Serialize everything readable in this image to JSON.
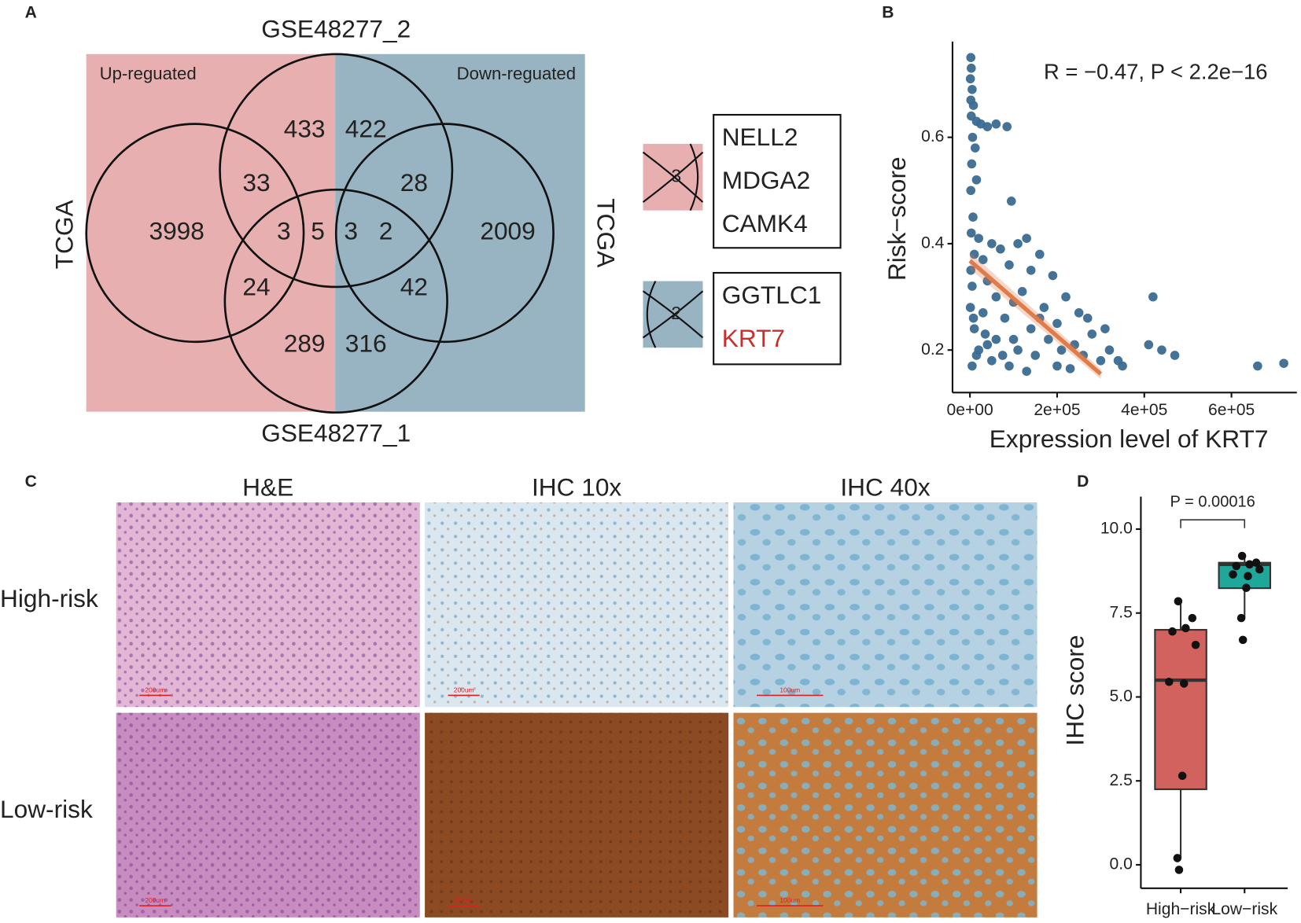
{
  "venn": {
    "panel": "A",
    "up_label": "Up-reguated",
    "down_label": "Down-reguated",
    "sets": [
      "TCGA",
      "GSE48277_2",
      "GSE48277_1",
      "TCGA"
    ],
    "regions": [
      3998,
      433,
      33,
      3,
      5,
      24,
      289,
      422,
      28,
      3,
      2,
      2009,
      42,
      316
    ],
    "insets": [
      {
        "count": 3,
        "genes": [
          {
            "name": "NELL2",
            "color": "#222222"
          },
          {
            "name": "MDGA2",
            "color": "#222222"
          },
          {
            "name": "CAMK4",
            "color": "#222222"
          }
        ]
      },
      {
        "count": 2,
        "genes": [
          {
            "name": "GGTLC1",
            "color": "#222222"
          },
          {
            "name": "KRT7",
            "color": "#c8302f"
          }
        ]
      }
    ],
    "colors": [
      "#e8afb0",
      "#98b3c1"
    ]
  },
  "chart_data": [
    {
      "type": "scatter",
      "panel": "B",
      "annotation": "R = −0.47, P < 2.2e−16",
      "x_label": "Expression level of KRT7",
      "y_label": "Risk−score",
      "color": "#3b6a91",
      "x": [
        2000,
        3000,
        1000,
        5000,
        2000,
        8000,
        3000,
        15000,
        25000,
        40000,
        60000,
        85000,
        6000,
        12000,
        4000,
        15000,
        2000,
        95000,
        7000,
        3000,
        20000,
        50000,
        110000,
        130000,
        70000,
        10000,
        30000,
        160000,
        90000,
        140000,
        190000,
        40000,
        5000,
        120000,
        220000,
        60000,
        100000,
        170000,
        250000,
        30000,
        80000,
        200000,
        140000,
        10000,
        280000,
        60000,
        180000,
        240000,
        320000,
        110000,
        20000,
        150000,
        260000,
        300000,
        340000,
        50000,
        200000,
        90000,
        130000,
        230000,
        5000,
        15000,
        40000,
        75000,
        350000,
        420000,
        410000,
        440000,
        470000,
        660000,
        720000,
        270000,
        310000,
        100000,
        160000,
        210000,
        35000,
        1000,
        2000,
        8000
      ],
      "values": [
        0.75,
        0.73,
        0.71,
        0.69,
        0.67,
        0.66,
        0.64,
        0.63,
        0.625,
        0.62,
        0.625,
        0.62,
        0.6,
        0.58,
        0.55,
        0.52,
        0.5,
        0.48,
        0.45,
        0.42,
        0.41,
        0.4,
        0.4,
        0.41,
        0.39,
        0.38,
        0.37,
        0.38,
        0.36,
        0.35,
        0.34,
        0.33,
        0.32,
        0.31,
        0.3,
        0.3,
        0.29,
        0.28,
        0.27,
        0.27,
        0.26,
        0.25,
        0.24,
        0.24,
        0.23,
        0.22,
        0.22,
        0.21,
        0.2,
        0.2,
        0.2,
        0.19,
        0.19,
        0.18,
        0.18,
        0.18,
        0.17,
        0.17,
        0.16,
        0.165,
        0.17,
        0.19,
        0.21,
        0.19,
        0.17,
        0.3,
        0.21,
        0.2,
        0.19,
        0.17,
        0.175,
        0.26,
        0.24,
        0.22,
        0.26,
        0.2,
        0.23,
        0.28,
        0.35,
        0.26
      ],
      "fit": {
        "x": [
          0,
          300000
        ],
        "values": [
          0.368,
          0.155
        ],
        "color": "#e07b4a"
      },
      "xlim": [
        -40000,
        750000
      ],
      "ylim": [
        0.12,
        0.78
      ],
      "xticks": [
        {
          "value": 0,
          "label": "0e+00"
        },
        {
          "value": 200000,
          "label": "2e+05"
        },
        {
          "value": 400000,
          "label": "4e+05"
        },
        {
          "value": 600000,
          "label": "6e+05"
        }
      ],
      "yticks": [
        0.2,
        0.4,
        0.6
      ]
    },
    {
      "type": "box",
      "panel": "D",
      "annotation": "P = 0.00016",
      "y_label": "IHC score",
      "categories": [
        "High−risk",
        "Low−risk"
      ],
      "boxes": [
        {
          "color": "#d2625e",
          "whisker_low": 0.2,
          "q1": 2.25,
          "median": 5.5,
          "q3": 7.0,
          "whisker_high": 7.9,
          "points": [
            7.85,
            7.35,
            7.05,
            6.95,
            6.55,
            5.45,
            5.4,
            2.65,
            0.2,
            -0.15
          ]
        },
        {
          "color": "#1fa89a",
          "whisker_low": 7.35,
          "q1": 8.24,
          "median": 8.95,
          "q3": 9.0,
          "whisker_high": 9.2,
          "points": [
            9.2,
            9.0,
            8.95,
            8.9,
            8.8,
            8.65,
            8.6,
            8.25,
            7.35,
            6.7
          ]
        }
      ],
      "ylim": [
        -0.7,
        10.97
      ],
      "yticks": [
        {
          "value": 0,
          "label": "0.0"
        },
        2.5,
        {
          "value": 5,
          "label": "5.0"
        },
        7.5,
        {
          "value": 10,
          "label": "10.0"
        }
      ]
    }
  ],
  "micrographs": {
    "panel": "C",
    "columns": [
      "H&E",
      "IHC 10x",
      "IHC 40x"
    ],
    "rows": [
      {
        "label": "High-risk",
        "scale_bars": [
          "200um",
          "200um",
          "100um"
        ]
      },
      {
        "label": "Low-risk",
        "scale_bars": [
          "200um",
          "200um",
          "100um"
        ]
      }
    ]
  }
}
